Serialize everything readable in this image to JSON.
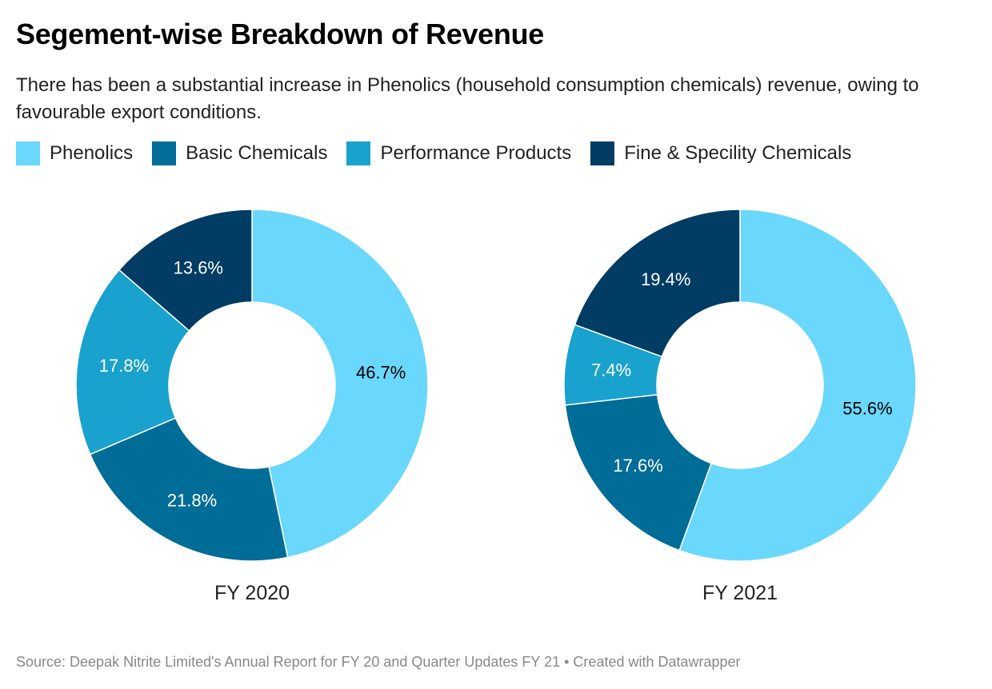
{
  "title": "Segement-wise Breakdown of Revenue",
  "subtitle": "There has been a substantial increase in Phenolics (household consumption chemicals) revenue, owing to favourable export conditions.",
  "source": "Source: Deepak Nitrite Limited's Annual Report for FY 20 and Quarter Updates FY 21 • Created with Datawrapper",
  "chart_data": {
    "type": "pie",
    "donut": true,
    "categories": [
      "Phenolics",
      "Basic Chemicals",
      "Performance Products",
      "Fine & Specility Chemicals"
    ],
    "colors": [
      "#6ad7fd",
      "#006c98",
      "#18a2cd",
      "#003c64"
    ],
    "label_colors": [
      "#000000",
      "#ffffff",
      "#ffffff",
      "#ffffff"
    ],
    "legend_position": "top-left",
    "charts": [
      {
        "label": "FY 2020",
        "values": [
          46.7,
          21.8,
          17.8,
          13.6
        ],
        "labels": [
          "46.7%",
          "21.8%",
          "17.8%",
          "13.6%"
        ]
      },
      {
        "label": "FY 2021",
        "values": [
          55.6,
          17.6,
          7.4,
          19.4
        ],
        "labels": [
          "55.6%",
          "17.6%",
          "7.4%",
          "19.4%"
        ]
      }
    ]
  }
}
